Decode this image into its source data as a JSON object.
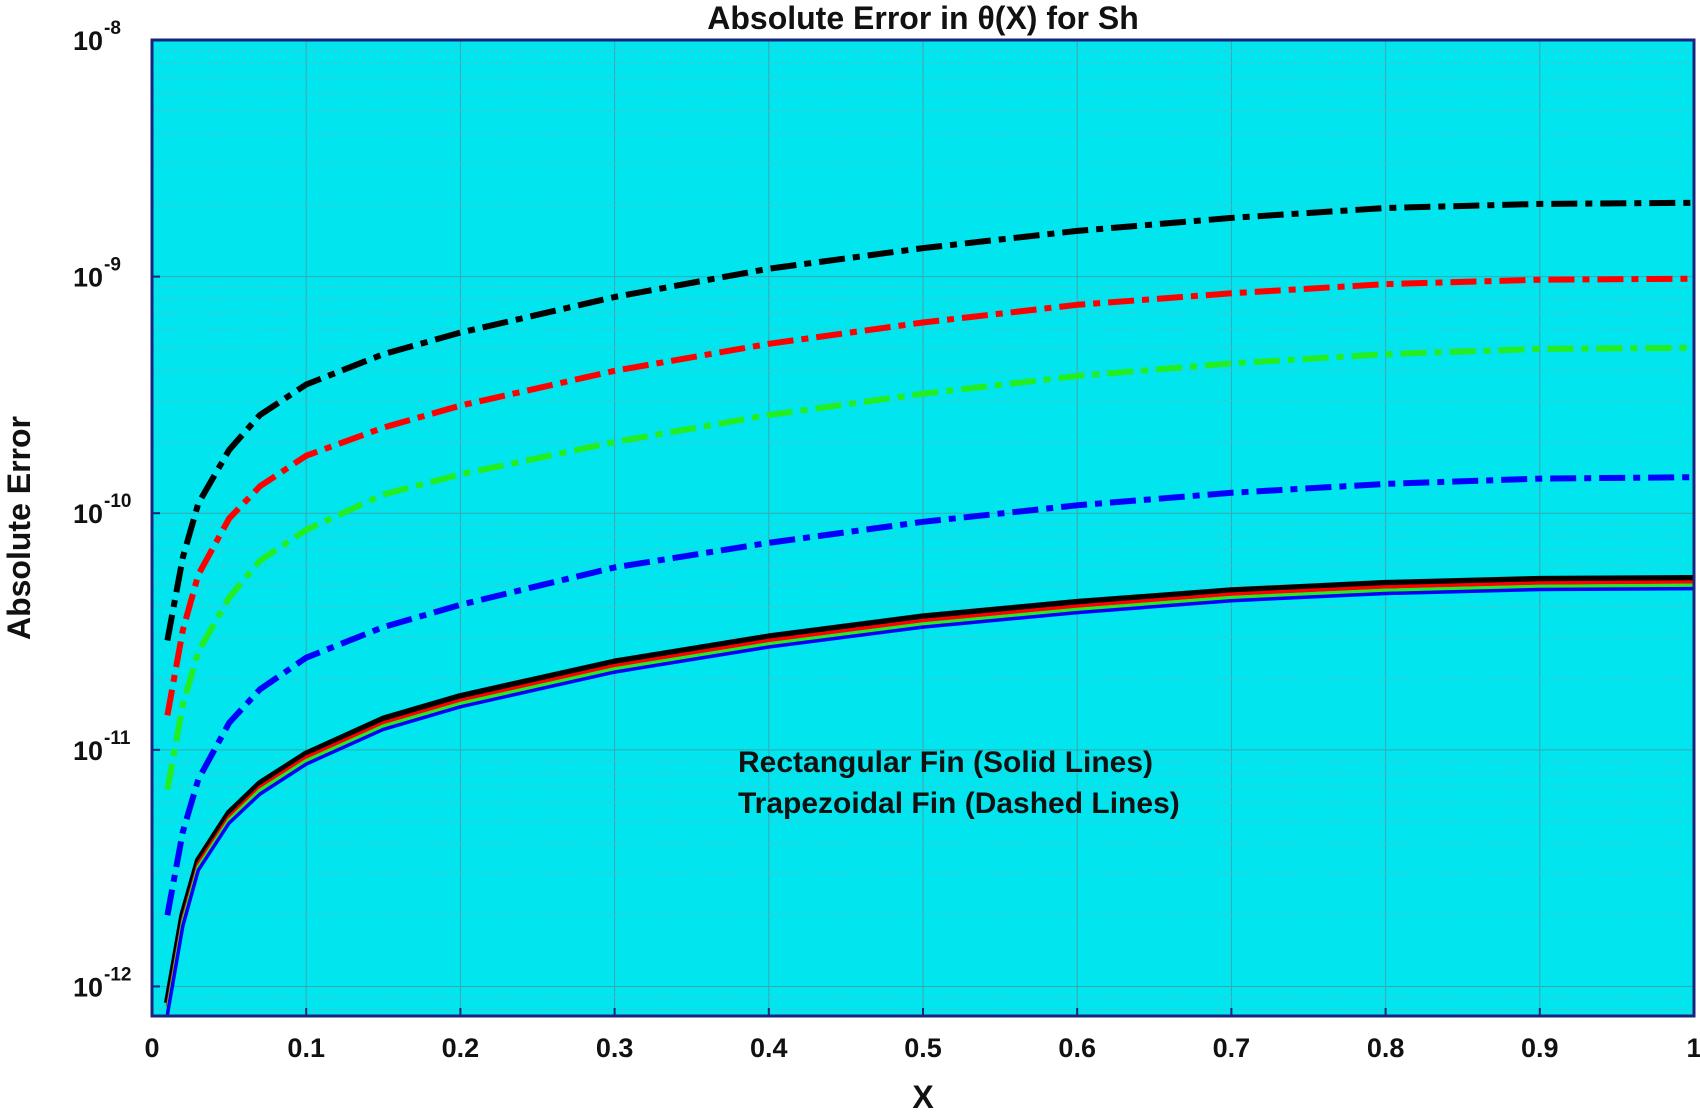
{
  "chart_data": {
    "type": "line",
    "title": "Absolute Error  in  θ(X)  for  Sh",
    "xlabel": "X",
    "ylabel": "Absolute Error",
    "xlim": [
      0,
      1
    ],
    "ylim": [
      7.5e-13,
      1e-08
    ],
    "yscale": "log",
    "grid": true,
    "background_color": "#00E5EE",
    "x_ticks": [
      "0",
      "0.1",
      "0.2",
      "0.3",
      "0.4",
      "0.5",
      "0.6",
      "0.7",
      "0.8",
      "0.9",
      "1"
    ],
    "y_ticks": [
      {
        "base": "10",
        "exp": "-12",
        "value": 1e-12
      },
      {
        "base": "10",
        "exp": "-11",
        "value": 1e-11
      },
      {
        "base": "10",
        "exp": "-10",
        "value": 1e-10
      },
      {
        "base": "10",
        "exp": "-9",
        "value": 1e-09
      },
      {
        "base": "10",
        "exp": "-8",
        "value": 1e-08
      }
    ],
    "annotations": [
      "Rectangular Fin (Solid Lines)",
      "Trapezoidal Fin (Dashed Lines)"
    ],
    "x": [
      0.01,
      0.02,
      0.03,
      0.05,
      0.07,
      0.1,
      0.15,
      0.2,
      0.3,
      0.4,
      0.5,
      0.6,
      0.7,
      0.8,
      0.9,
      1.0
    ],
    "series": [
      {
        "style": "dashed",
        "color": "#000000",
        "values": [
          2.9e-11,
          6.5e-11,
          1.1e-10,
          1.85e-10,
          2.6e-10,
          3.5e-10,
          4.7e-10,
          5.8e-10,
          8.2e-10,
          1.08e-09,
          1.32e-09,
          1.56e-09,
          1.77e-09,
          1.95e-09,
          2.03e-09,
          2.05e-09
        ]
      },
      {
        "style": "dashed",
        "color": "#FF0000",
        "values": [
          1.4e-11,
          3.2e-11,
          5.5e-11,
          9.5e-11,
          1.3e-10,
          1.75e-10,
          2.3e-10,
          2.85e-10,
          4e-10,
          5.2e-10,
          6.4e-10,
          7.6e-10,
          8.5e-10,
          9.3e-10,
          9.7e-10,
          9.8e-10
        ]
      },
      {
        "style": "dashed",
        "color": "#22EE22",
        "values": [
          6.8e-12,
          1.55e-11,
          2.6e-11,
          4.4e-11,
          6.3e-11,
          8.5e-11,
          1.2e-10,
          1.46e-10,
          2e-10,
          2.6e-10,
          3.2e-10,
          3.8e-10,
          4.3e-10,
          4.7e-10,
          4.95e-10,
          5e-10
        ]
      },
      {
        "style": "dashed",
        "color": "#0000FF",
        "values": [
          2e-12,
          4.5e-12,
          7.5e-12,
          1.3e-11,
          1.8e-11,
          2.45e-11,
          3.3e-11,
          4.1e-11,
          5.9e-11,
          7.5e-11,
          9.2e-11,
          1.08e-10,
          1.22e-10,
          1.33e-10,
          1.4e-10,
          1.42e-10
        ]
      },
      {
        "style": "solid",
        "color": "#000000",
        "values": [
          8.5e-13,
          2e-12,
          3.4e-12,
          5.4e-12,
          7.2e-12,
          9.6e-12,
          1.35e-11,
          1.68e-11,
          2.35e-11,
          3e-11,
          3.65e-11,
          4.2e-11,
          4.7e-11,
          5.05e-11,
          5.25e-11,
          5.3e-11
        ]
      },
      {
        "style": "solid",
        "color": "#FF0000",
        "values": [
          8.2e-13,
          1.93e-12,
          3.3e-12,
          5.2e-12,
          6.95e-12,
          9.3e-12,
          1.3e-11,
          1.62e-11,
          2.27e-11,
          2.9e-11,
          3.52e-11,
          4.05e-11,
          4.55e-11,
          4.88e-11,
          5.07e-11,
          5.12e-11
        ]
      },
      {
        "style": "solid",
        "color": "#22EE22",
        "values": [
          7.9e-13,
          1.87e-12,
          3.2e-12,
          5.05e-12,
          6.75e-12,
          9e-12,
          1.26e-11,
          1.57e-11,
          2.2e-11,
          2.8e-11,
          3.4e-11,
          3.92e-11,
          4.4e-11,
          4.72e-11,
          4.9e-11,
          4.96e-11
        ]
      },
      {
        "style": "solid",
        "color": "#0000FF",
        "values": [
          7.6e-13,
          1.8e-12,
          3.1e-12,
          4.9e-12,
          6.5e-12,
          8.7e-12,
          1.22e-11,
          1.52e-11,
          2.13e-11,
          2.72e-11,
          3.3e-11,
          3.8e-11,
          4.27e-11,
          4.58e-11,
          4.76e-11,
          4.8e-11
        ]
      }
    ]
  }
}
